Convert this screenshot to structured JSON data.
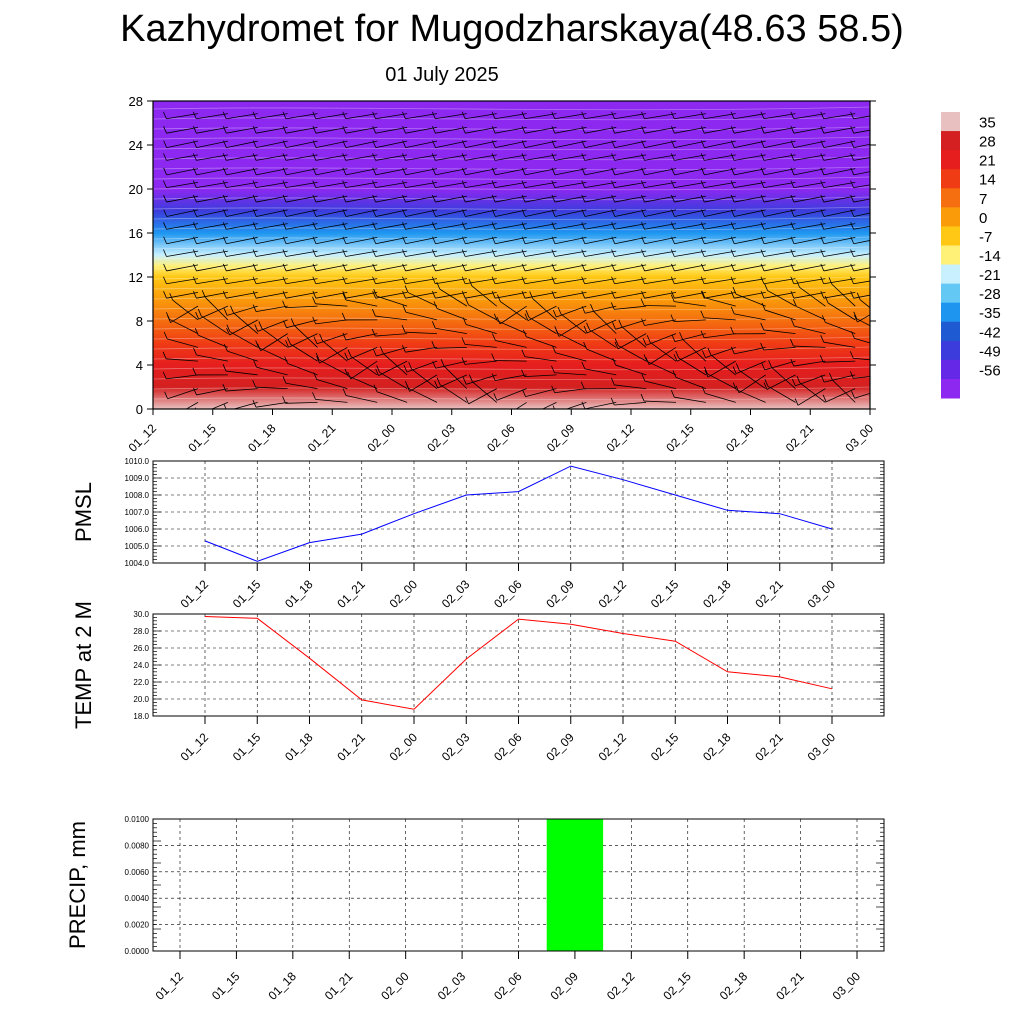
{
  "header": {
    "title": "Kazhydromet for Mugodzharskaya(48.63 58.5)",
    "date": "01 July 2025"
  },
  "colors": {
    "pmsl_line": "#0000ff",
    "temp_line": "#ff0000",
    "precip_bar": "#00ff00",
    "grid": "#000000"
  },
  "colorbar": {
    "labels": [
      "35",
      "28",
      "21",
      "14",
      "7",
      "0",
      "-7",
      "-14",
      "-21",
      "-28",
      "-35",
      "-42",
      "-49",
      "-56"
    ],
    "colors": [
      "#e8c0c0",
      "#d42020",
      "#e61e1e",
      "#f03c14",
      "#f56e0f",
      "#fa9b0a",
      "#ffc814",
      "#fff078",
      "#c8f0ff",
      "#64c8f5",
      "#1e96f0",
      "#1e5ad2",
      "#3c3cdc",
      "#6428e6",
      "#8c28f0"
    ]
  },
  "chart_data": [
    {
      "type": "heatmap",
      "title": "",
      "x_tick_labels": [
        "01_12",
        "01_15",
        "01_18",
        "01_21",
        "02_00",
        "02_03",
        "02_06",
        "02_09",
        "02_12",
        "02_15",
        "02_18",
        "02_21",
        "03_00"
      ],
      "y_ticks": [
        0,
        4,
        8,
        12,
        16,
        20,
        24,
        28
      ],
      "ylim": [
        0,
        28
      ],
      "colorbar_range": [
        -56,
        35
      ],
      "temperature_by_level": {
        "levels": [
          0,
          2,
          4,
          6,
          8,
          10,
          12,
          13,
          14,
          16,
          18,
          20,
          22,
          24,
          26,
          28
        ],
        "values": [
          30,
          27,
          21,
          15,
          8,
          1,
          -6,
          -12,
          -19,
          -30,
          -40,
          -50,
          -57,
          -60,
          -62,
          -62
        ]
      },
      "overlay": "wind barbs"
    },
    {
      "type": "line",
      "ylabel": "PMSL",
      "x": [
        "01_12",
        "01_15",
        "01_18",
        "01_21",
        "02_00",
        "02_03",
        "02_06",
        "02_09",
        "02_12",
        "02_15",
        "02_18",
        "02_21",
        "03_00"
      ],
      "values": [
        1005.3,
        1004.1,
        1005.2,
        1005.7,
        1006.9,
        1008.0,
        1008.2,
        1009.7,
        1008.9,
        1008.0,
        1007.1,
        1006.9,
        1006.0
      ],
      "ylim": [
        1004.0,
        1010.0
      ],
      "y_tick_labels": [
        "1010.0",
        "1009.0",
        "1008.0",
        "1007.0",
        "1006.0",
        "1005.0",
        "1004.0"
      ],
      "grid": true
    },
    {
      "type": "line",
      "ylabel": "TEMP at 2 M",
      "x": [
        "01_12",
        "01_15",
        "01_18",
        "01_21",
        "02_00",
        "02_03",
        "02_06",
        "02_09",
        "02_12",
        "02_15",
        "02_18",
        "02_21",
        "03_00"
      ],
      "values": [
        29.7,
        29.5,
        24.8,
        19.9,
        18.8,
        24.7,
        29.4,
        28.8,
        27.7,
        26.8,
        23.2,
        22.6,
        21.2
      ],
      "ylim": [
        18.0,
        30.0
      ],
      "y_tick_labels": [
        "30.0",
        "28.0",
        "26.0",
        "24.0",
        "22.0",
        "20.0",
        "18.0"
      ],
      "grid": true
    },
    {
      "type": "bar",
      "ylabel": "PRECIP, mm",
      "categories": [
        "01_12",
        "01_15",
        "01_18",
        "01_21",
        "02_00",
        "02_03",
        "02_06",
        "02_09",
        "02_12",
        "02_15",
        "02_18",
        "02_21",
        "03_00"
      ],
      "values": [
        0,
        0,
        0,
        0,
        0,
        0,
        0,
        0.01,
        0,
        0,
        0,
        0,
        0
      ],
      "ylim": [
        0.0,
        0.01
      ],
      "y_tick_labels": [
        "0.0100",
        "0.0080",
        "0.0060",
        "0.0040",
        "0.0020",
        "0.0000"
      ],
      "grid": true
    }
  ]
}
